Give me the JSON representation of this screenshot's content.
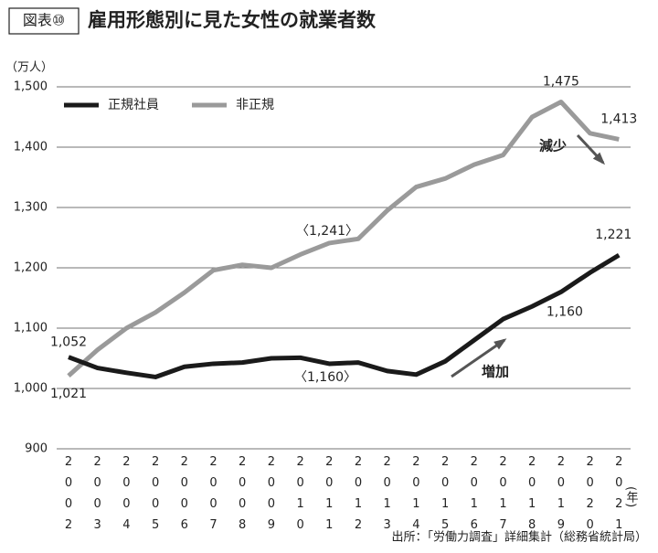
{
  "chart_data": {
    "type": "line",
    "figure_label": "図表⑩",
    "title": "雇用形態別に見た女性の就業者数",
    "y_unit": "（万人）",
    "x_unit": "(年)",
    "source": "出所：「労働力調査」詳細集計（総務省統計局）",
    "categories": [
      "2002",
      "2003",
      "2004",
      "2005",
      "2006",
      "2007",
      "2008",
      "2009",
      "2010",
      "2011",
      "2012",
      "2013",
      "2014",
      "2015",
      "2016",
      "2017",
      "2018",
      "2019",
      "2020",
      "2021"
    ],
    "series": [
      {
        "name": "正規社員",
        "color": "#1a1a1a",
        "values": [
          1052,
          1034,
          1026,
          1019,
          1036,
          1041,
          1043,
          1050,
          1051,
          1041,
          1043,
          1029,
          1023,
          1045,
          1080,
          1115,
          1136,
          1160,
          1192,
          1221
        ],
        "value_labels": [
          "1,052",
          null,
          null,
          null,
          null,
          null,
          null,
          null,
          null,
          null,
          null,
          null,
          null,
          null,
          null,
          null,
          null,
          "1,160",
          null,
          "1,221"
        ]
      },
      {
        "name": "非正規",
        "color": "#9a9a9a",
        "values": [
          1021,
          1064,
          1100,
          1126,
          1159,
          1196,
          1205,
          1200,
          1222,
          1241,
          1248,
          1295,
          1334,
          1348,
          1371,
          1387,
          1450,
          1475,
          1423,
          1413
        ],
        "value_labels": [
          "1,021",
          null,
          null,
          null,
          null,
          null,
          null,
          null,
          null,
          null,
          null,
          null,
          null,
          null,
          null,
          null,
          null,
          "1,475",
          null,
          "1,413"
        ]
      }
    ],
    "annotations": [
      "〈1,241〉",
      "〈1,160〉",
      "減少",
      "増加"
    ],
    "ylim": [
      900,
      1500
    ],
    "yticks": [
      900,
      {
        "value": 1000,
        "label": "1,000"
      },
      {
        "value": 1100,
        "label": "1,100"
      },
      {
        "value": 1200,
        "label": "1,200"
      },
      {
        "value": 1300,
        "label": "1,300"
      },
      {
        "value": 1400,
        "label": "1,400"
      },
      {
        "value": 1500,
        "label": "1,500"
      }
    ],
    "grid": true,
    "legend": "upper left"
  }
}
